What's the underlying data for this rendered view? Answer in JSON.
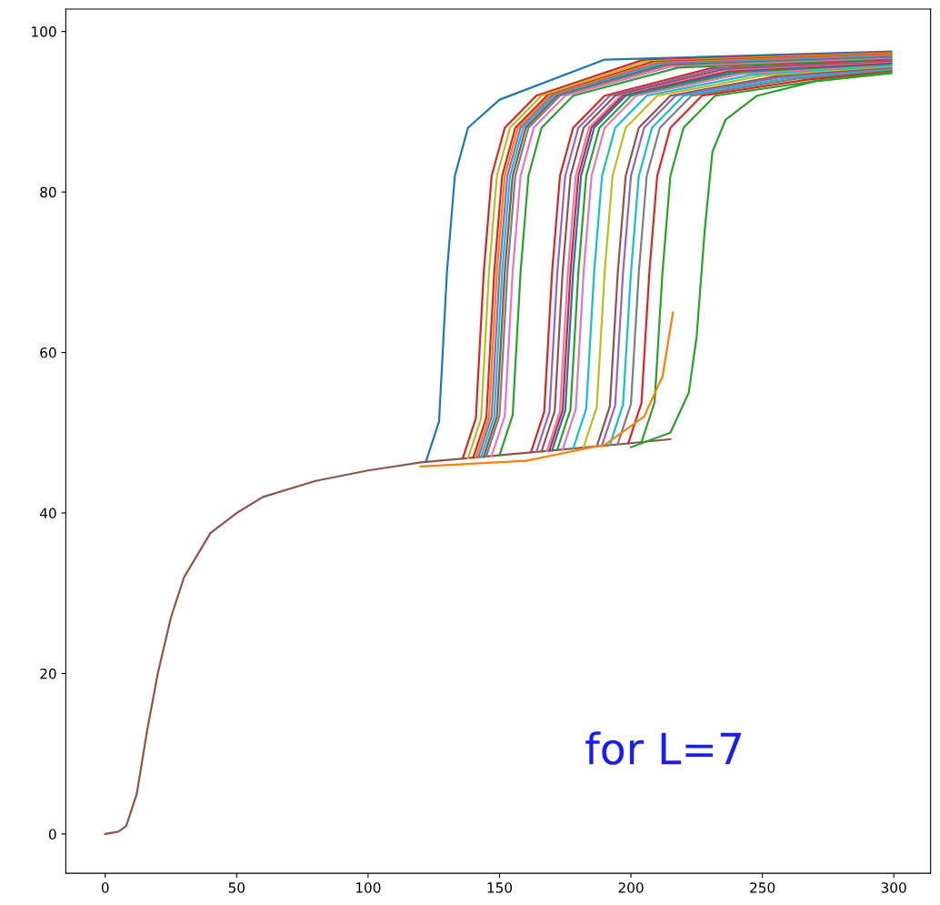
{
  "chart_data": {
    "type": "line",
    "xlim": [
      -15,
      314
    ],
    "ylim": [
      -4.9,
      102.8
    ],
    "xticks": [
      0,
      50,
      100,
      150,
      200,
      250,
      300
    ],
    "yticks": [
      0,
      20,
      40,
      60,
      80,
      100
    ],
    "grid": false,
    "marker": "none",
    "line_style": "solid",
    "annotations": [
      "for L=7"
    ],
    "series": [
      {
        "color": "#8c564b",
        "x": [
          0,
          5,
          8,
          12,
          16,
          20,
          25,
          30,
          40,
          50,
          60,
          80,
          100,
          120,
          140,
          160,
          180,
          200,
          215
        ],
        "values": [
          0,
          0.3,
          1,
          5,
          13,
          20,
          27,
          32,
          37.5,
          40,
          42,
          44,
          45.3,
          46.3,
          46.9,
          47.5,
          48.1,
          48.7,
          49.2
        ]
      },
      {
        "color": "#1f77b4",
        "x": [
          122,
          127,
          130,
          133,
          138,
          150,
          190,
          299
        ],
        "values": [
          46.4,
          51.4,
          70,
          82,
          88,
          91.5,
          96.5,
          97.5
        ]
      },
      {
        "color": "#d62728",
        "x": [
          136,
          141,
          144,
          147,
          152,
          164,
          204,
          299
        ],
        "values": [
          46.8,
          51.8,
          70,
          82,
          88,
          92,
          96.4,
          97.4
        ]
      },
      {
        "color": "#bcbd22",
        "x": [
          138,
          143,
          146,
          149,
          154,
          166,
          206,
          299
        ],
        "values": [
          46.8,
          51.8,
          70,
          82,
          88,
          92,
          96.3,
          97.3
        ]
      },
      {
        "color": "#d62728",
        "x": [
          140,
          145,
          148,
          151,
          156,
          168,
          208,
          299
        ],
        "values": [
          46.9,
          51.9,
          70,
          82,
          88,
          92,
          96.2,
          97.2
        ]
      },
      {
        "color": "#ff7f0e",
        "x": [
          141,
          146,
          149,
          152,
          157,
          169,
          209,
          299
        ],
        "values": [
          46.9,
          51.9,
          70,
          82,
          88,
          92,
          96.1,
          97.1
        ]
      },
      {
        "color": "#9467bd",
        "x": [
          142,
          147,
          150,
          153,
          158,
          170,
          210,
          299
        ],
        "values": [
          47.0,
          52.0,
          70,
          82,
          88,
          92,
          96,
          97
        ]
      },
      {
        "color": "#17becf",
        "x": [
          143,
          148,
          151,
          154,
          159,
          171,
          211,
          299
        ],
        "values": [
          47.0,
          52.0,
          70,
          82,
          88,
          92,
          95.9,
          96.9
        ]
      },
      {
        "color": "#8c564b",
        "x": [
          144,
          149,
          152,
          155,
          160,
          172,
          212,
          299
        ],
        "values": [
          47.0,
          52.0,
          70,
          82,
          88,
          92,
          95.8,
          96.8
        ]
      },
      {
        "color": "#7f7f7f",
        "x": [
          145,
          150,
          153,
          156,
          161,
          173,
          213,
          299
        ],
        "values": [
          47.1,
          52.1,
          70,
          82,
          88,
          92,
          95.7,
          96.7
        ]
      },
      {
        "color": "#e377c2",
        "x": [
          147,
          152,
          155,
          158,
          163,
          175,
          215,
          299
        ],
        "values": [
          47.1,
          52.1,
          70,
          82,
          88,
          92,
          95.6,
          96.6
        ]
      },
      {
        "color": "#2ca02c",
        "x": [
          150,
          155,
          158,
          161,
          166,
          178,
          218,
          299
        ],
        "values": [
          47.2,
          52.2,
          70,
          82,
          88,
          92,
          95.5,
          96.5
        ]
      },
      {
        "color": "#d62728",
        "x": [
          162,
          167,
          170,
          173,
          178,
          190,
          230,
          299
        ],
        "values": [
          47.6,
          52.6,
          70,
          82,
          88,
          92,
          95.4,
          96.4
        ]
      },
      {
        "color": "#9467bd",
        "x": [
          164,
          169,
          172,
          175,
          180,
          192,
          232,
          299
        ],
        "values": [
          47.6,
          52.6,
          70,
          82,
          88,
          92,
          95.3,
          96.3
        ]
      },
      {
        "color": "#8c564b",
        "x": [
          166,
          171,
          174,
          177,
          182,
          194,
          234,
          299
        ],
        "values": [
          47.7,
          52.7,
          70,
          82,
          88,
          92,
          95.2,
          96.2
        ]
      },
      {
        "color": "#e377c2",
        "x": [
          168,
          173,
          176,
          179,
          184,
          196,
          236,
          299
        ],
        "values": [
          47.7,
          52.7,
          70,
          82,
          88,
          92,
          95.1,
          96.1
        ]
      },
      {
        "color": "#d62728",
        "x": [
          169,
          174,
          177,
          180,
          185,
          197,
          237,
          299
        ],
        "values": [
          47.8,
          52.8,
          70,
          82,
          88,
          92,
          95,
          96
        ]
      },
      {
        "color": "#1f77b4",
        "x": [
          170,
          175,
          178,
          181,
          186,
          198,
          238,
          299
        ],
        "values": [
          47.8,
          52.8,
          70,
          82,
          88,
          92,
          94.9,
          95.9
        ]
      },
      {
        "color": "#2ca02c",
        "x": [
          172,
          177,
          180,
          183,
          188,
          200,
          240,
          299
        ],
        "values": [
          47.9,
          52.9,
          70,
          82,
          88,
          92,
          94.8,
          95.8
        ]
      },
      {
        "color": "#e377c2",
        "x": [
          174,
          179,
          182,
          185,
          190,
          202,
          242,
          299
        ],
        "values": [
          47.9,
          52.9,
          70,
          82,
          88,
          92,
          94.7,
          95.7
        ]
      },
      {
        "color": "#17becf",
        "x": [
          178,
          183,
          186,
          189,
          194,
          206,
          246,
          299
        ],
        "values": [
          48.0,
          53.0,
          70,
          82,
          88,
          92,
          94.6,
          95.6
        ]
      },
      {
        "color": "#bcbd22",
        "x": [
          182,
          187,
          190,
          193,
          198,
          210,
          250,
          299
        ],
        "values": [
          48.2,
          53.2,
          70,
          82,
          88,
          92,
          94.5,
          95.5
        ]
      },
      {
        "color": "#8c564b",
        "x": [
          187,
          192,
          195,
          198,
          203,
          215,
          255,
          299
        ],
        "values": [
          48.3,
          53.3,
          70,
          82,
          88,
          92,
          94.4,
          95.4
        ]
      },
      {
        "color": "#9467bd",
        "x": [
          189,
          194,
          197,
          200,
          205,
          217,
          257,
          299
        ],
        "values": [
          48.4,
          53.4,
          70,
          82,
          88,
          92,
          94.3,
          95.3
        ]
      },
      {
        "color": "#17becf",
        "x": [
          192,
          197,
          200,
          203,
          208,
          220,
          260,
          299
        ],
        "values": [
          48.5,
          53.5,
          70,
          82,
          88,
          92,
          94.2,
          95.2
        ]
      },
      {
        "color": "#7f7f7f",
        "x": [
          195,
          200,
          203,
          206,
          211,
          223,
          263,
          299
        ],
        "values": [
          48.6,
          53.6,
          70,
          82,
          88,
          92,
          94.1,
          95.1
        ]
      },
      {
        "color": "#d62728",
        "x": [
          199,
          204,
          207,
          210,
          215,
          227,
          267,
          299
        ],
        "values": [
          48.7,
          53.7,
          70,
          82,
          88,
          92,
          94,
          95
        ]
      },
      {
        "color": "#2ca02c",
        "x": [
          204,
          209,
          212,
          215,
          220,
          232,
          272,
          299
        ],
        "values": [
          48.8,
          53.8,
          70,
          82,
          88,
          92,
          93.9,
          94.9
        ]
      },
      {
        "color": "#ff7f0e",
        "x": [
          120,
          160,
          190,
          205,
          212,
          216
        ],
        "values": [
          45.8,
          46.5,
          48.5,
          52,
          57,
          65
        ]
      },
      {
        "color": "#2ca02c",
        "x": [
          200,
          215,
          222,
          225,
          228,
          231,
          236,
          248,
          270,
          299
        ],
        "values": [
          48.2,
          50,
          55,
          62,
          75,
          85,
          89,
          92,
          93.8,
          94.8
        ]
      }
    ]
  }
}
